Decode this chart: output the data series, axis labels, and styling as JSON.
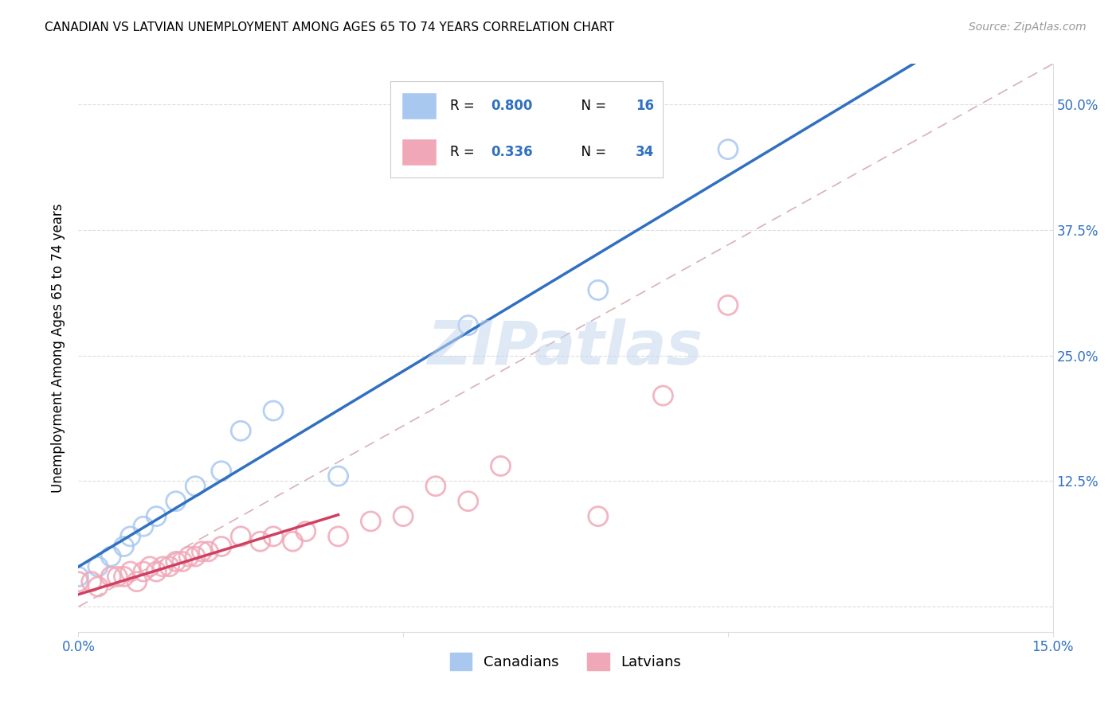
{
  "title": "CANADIAN VS LATVIAN UNEMPLOYMENT AMONG AGES 65 TO 74 YEARS CORRELATION CHART",
  "source": "Source: ZipAtlas.com",
  "ylabel": "Unemployment Among Ages 65 to 74 years",
  "xlim": [
    0.0,
    0.15
  ],
  "ylim": [
    -0.025,
    0.54
  ],
  "canadian_R": 0.8,
  "canadian_N": 16,
  "latvian_R": 0.336,
  "latvian_N": 34,
  "canadian_color": "#A8C8F0",
  "latvian_color": "#F0A8B8",
  "canadian_line_color": "#3070C0",
  "latvian_line_color": "#D04060",
  "diagonal_color": "#D8B0B8",
  "background_color": "#FFFFFF",
  "watermark": "ZIPatlas",
  "canadians_x": [
    0.0,
    0.003,
    0.005,
    0.007,
    0.008,
    0.01,
    0.012,
    0.015,
    0.018,
    0.022,
    0.025,
    0.03,
    0.04,
    0.06,
    0.08,
    0.1
  ],
  "canadians_y": [
    0.03,
    0.04,
    0.05,
    0.06,
    0.07,
    0.08,
    0.09,
    0.105,
    0.12,
    0.135,
    0.175,
    0.195,
    0.13,
    0.28,
    0.315,
    0.455
  ],
  "latvians_x": [
    0.0,
    0.002,
    0.003,
    0.005,
    0.006,
    0.007,
    0.008,
    0.009,
    0.01,
    0.011,
    0.012,
    0.013,
    0.014,
    0.015,
    0.016,
    0.017,
    0.018,
    0.019,
    0.02,
    0.022,
    0.025,
    0.028,
    0.03,
    0.033,
    0.035,
    0.04,
    0.045,
    0.05,
    0.055,
    0.06,
    0.065,
    0.08,
    0.09,
    0.1
  ],
  "latvians_y": [
    0.025,
    0.025,
    0.02,
    0.03,
    0.03,
    0.03,
    0.035,
    0.025,
    0.035,
    0.04,
    0.035,
    0.04,
    0.04,
    0.045,
    0.045,
    0.05,
    0.05,
    0.055,
    0.055,
    0.06,
    0.07,
    0.065,
    0.07,
    0.065,
    0.075,
    0.07,
    0.085,
    0.09,
    0.12,
    0.105,
    0.14,
    0.09,
    0.21,
    0.3
  ],
  "latvian_line_xlim": [
    0.0,
    0.04
  ],
  "grid_color": "#DDDDDD",
  "tick_label_color": "#3070C0",
  "title_fontsize": 11,
  "label_fontsize": 12,
  "tick_fontsize": 12
}
